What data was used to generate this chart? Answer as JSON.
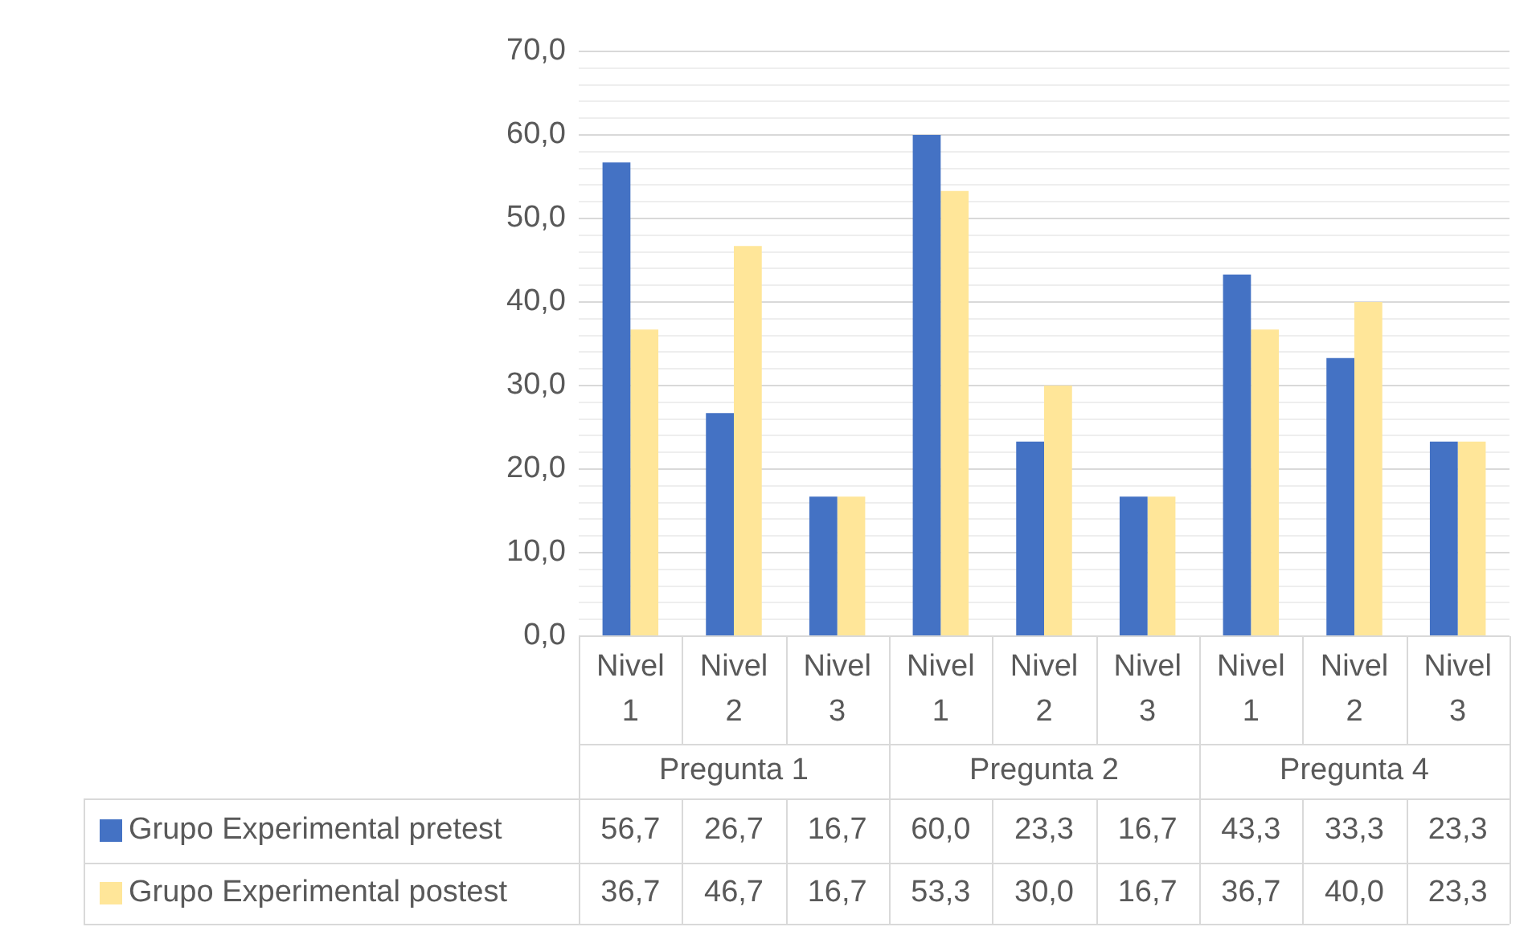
{
  "chart_data": {
    "type": "bar",
    "categories": [
      "Nivel 1",
      "Nivel 2",
      "Nivel 3",
      "Nivel 1",
      "Nivel 2",
      "Nivel 3",
      "Nivel 1",
      "Nivel 2",
      "Nivel 3"
    ],
    "annotations": [
      "Pregunta 1",
      "Pregunta 2",
      "Pregunta 4"
    ],
    "series": [
      {
        "name": "Grupo Experimental pretest",
        "color": "#4472c4",
        "values": [
          56.7,
          26.7,
          16.7,
          60.0,
          23.3,
          16.7,
          43.3,
          33.3,
          23.3
        ],
        "value_labels": [
          "56,7",
          "26,7",
          "16,7",
          "60,0",
          "23,3",
          "16,7",
          "43,3",
          "33,3",
          "23,3"
        ]
      },
      {
        "name": "Grupo Experimental postest",
        "color": "#ffe699",
        "values": [
          36.7,
          46.7,
          16.7,
          53.3,
          30.0,
          16.7,
          36.7,
          40.0,
          23.3
        ],
        "value_labels": [
          "36,7",
          "46,7",
          "16,7",
          "53,3",
          "30,0",
          "16,7",
          "36,7",
          "40,0",
          "23,3"
        ]
      }
    ],
    "ylim": [
      0,
      70
    ],
    "yticks": [
      {
        "value": 0,
        "label": "0,0"
      },
      {
        "value": 2,
        "label": null
      },
      {
        "value": 4,
        "label": null
      },
      {
        "value": 6,
        "label": null
      },
      {
        "value": 8,
        "label": null
      },
      {
        "value": 10,
        "label": "10,0"
      },
      {
        "value": 12,
        "label": null
      },
      {
        "value": 14,
        "label": null
      },
      {
        "value": 16,
        "label": null
      },
      {
        "value": 18,
        "label": null
      },
      {
        "value": 20,
        "label": "20,0"
      },
      {
        "value": 22,
        "label": null
      },
      {
        "value": 24,
        "label": null
      },
      {
        "value": 26,
        "label": null
      },
      {
        "value": 28,
        "label": null
      },
      {
        "value": 30,
        "label": "30,0"
      },
      {
        "value": 32,
        "label": null
      },
      {
        "value": 34,
        "label": null
      },
      {
        "value": 36,
        "label": null
      },
      {
        "value": 38,
        "label": null
      },
      {
        "value": 40,
        "label": "40,0"
      },
      {
        "value": 42,
        "label": null
      },
      {
        "value": 44,
        "label": null
      },
      {
        "value": 46,
        "label": null
      },
      {
        "value": 48,
        "label": null
      },
      {
        "value": 50,
        "label": "50,0"
      },
      {
        "value": 52,
        "label": null
      },
      {
        "value": 54,
        "label": null
      },
      {
        "value": 56,
        "label": null
      },
      {
        "value": 58,
        "label": null
      },
      {
        "value": 60,
        "label": "60,0"
      },
      {
        "value": 62,
        "label": null
      },
      {
        "value": 64,
        "label": null
      },
      {
        "value": 66,
        "label": null
      },
      {
        "value": 68,
        "label": null
      },
      {
        "value": 70,
        "label": "70,0"
      }
    ],
    "grid": true,
    "legend": "bottom"
  }
}
